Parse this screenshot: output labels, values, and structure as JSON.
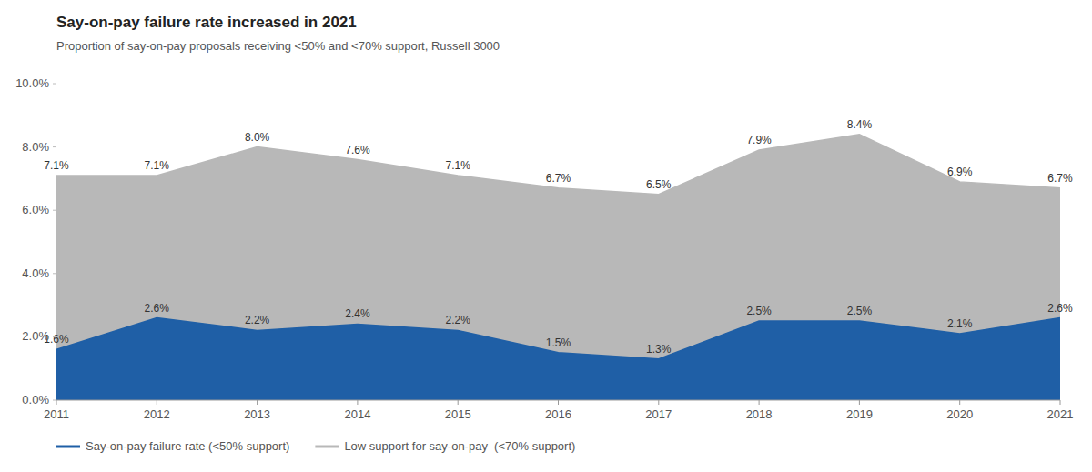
{
  "chart_data": {
    "type": "area",
    "title": "Say-on-pay failure rate increased in 2021",
    "subtitle": "Proportion of say-on-pay proposals receiving <50% and <70% support, Russell 3000",
    "x": [
      2011,
      2012,
      2013,
      2014,
      2015,
      2016,
      2017,
      2018,
      2019,
      2020,
      2021
    ],
    "series": [
      {
        "name": "Say-on-pay failure rate (<50% support)",
        "color": "#1f5fa6",
        "values": [
          1.6,
          2.6,
          2.2,
          2.4,
          2.2,
          1.5,
          1.3,
          2.5,
          2.5,
          2.1,
          2.6
        ],
        "value_labels": [
          "1.6%",
          "2.6%",
          "2.2%",
          "2.4%",
          "2.2%",
          "1.5%",
          "1.3%",
          "2.5%",
          "2.5%",
          "2.1%",
          "2.6%"
        ]
      },
      {
        "name": "Low support for say-on-pay  (<70% support)",
        "color": "#b8b8b8",
        "values": [
          7.1,
          7.1,
          8.0,
          7.6,
          7.1,
          6.7,
          6.5,
          7.9,
          8.4,
          6.9,
          6.7
        ],
        "value_labels": [
          "7.1%",
          "7.1%",
          "8.0%",
          "7.6%",
          "7.1%",
          "6.7%",
          "6.5%",
          "7.9%",
          "8.4%",
          "6.9%",
          "6.7%"
        ]
      }
    ],
    "xlim": [
      2011,
      2021
    ],
    "xticks": [
      2011,
      2012,
      2013,
      2014,
      2015,
      2016,
      2017,
      2018,
      2019,
      2020,
      2021
    ],
    "ylim": [
      0,
      10.0
    ],
    "yticks": [
      {
        "value": 0.0,
        "label": "0.0%"
      },
      {
        "value": 2.0,
        "label": "2.0%"
      },
      {
        "value": 4.0,
        "label": "4.0%"
      },
      {
        "value": 6.0,
        "label": "6.0%"
      },
      {
        "value": 8.0,
        "label": "8.0%"
      },
      {
        "value": 10.0,
        "label": "10.0%"
      }
    ],
    "data_labels": true,
    "grid": false,
    "legend": "bottom"
  }
}
